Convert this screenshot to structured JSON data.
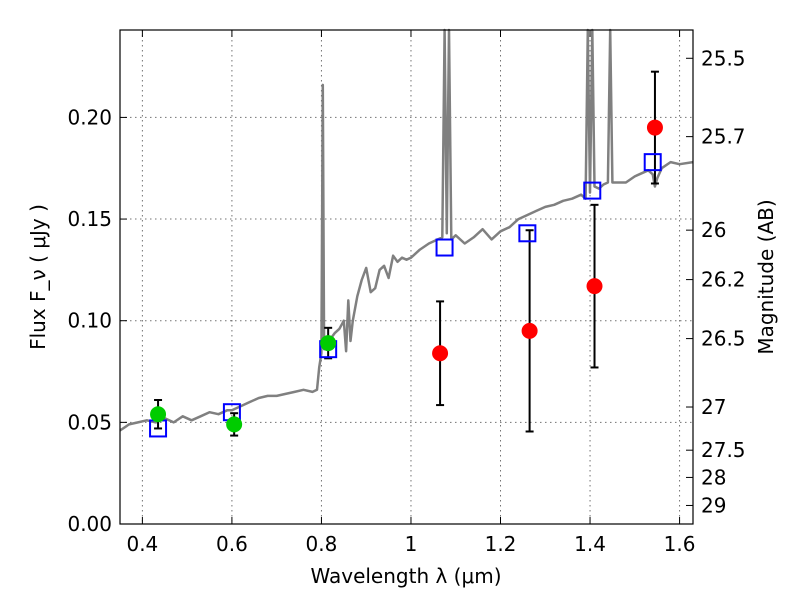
{
  "chart_data": {
    "type": "scatter",
    "xlabel": "Wavelength  λ (μm)",
    "ylabel_left": "Flux  F_ν ( μJy )",
    "ylabel_right": "Magnitude (AB)",
    "xlim": [
      0.35,
      1.63
    ],
    "ylim": [
      0.0,
      0.243
    ],
    "x_ticks": [
      0.4,
      0.6,
      0.8,
      1.0,
      1.2,
      1.4,
      1.6
    ],
    "x_tick_labels": [
      "0.4",
      "0.6",
      "0.8",
      "1",
      "1.2",
      "1.4",
      "1.6"
    ],
    "y_ticks": [
      0.0,
      0.05,
      0.1,
      0.15,
      0.2
    ],
    "y_tick_labels": [
      "0.00",
      "0.05",
      "0.10",
      "0.15",
      "0.20"
    ],
    "right_ticks": [
      {
        "label": "25.5",
        "mag": 25.5
      },
      {
        "label": "25.7",
        "mag": 25.7
      },
      {
        "label": "26",
        "mag": 26.0
      },
      {
        "label": "26.2",
        "mag": 26.2
      },
      {
        "label": "26.5",
        "mag": 26.5
      },
      {
        "label": "27",
        "mag": 27.0
      },
      {
        "label": "27.5",
        "mag": 27.5
      },
      {
        "label": "28",
        "mag": 28.0
      },
      {
        "label": "29",
        "mag": 29.0
      }
    ],
    "grid": true,
    "model_spectrum": {
      "color": "#808080",
      "x": [
        0.35,
        0.37,
        0.39,
        0.41,
        0.43,
        0.45,
        0.47,
        0.49,
        0.51,
        0.53,
        0.55,
        0.57,
        0.59,
        0.6,
        0.62,
        0.64,
        0.66,
        0.68,
        0.7,
        0.72,
        0.74,
        0.76,
        0.78,
        0.79,
        0.795,
        0.8,
        0.803,
        0.806,
        0.81,
        0.82,
        0.83,
        0.84,
        0.85,
        0.855,
        0.86,
        0.865,
        0.87,
        0.88,
        0.89,
        0.9,
        0.91,
        0.92,
        0.93,
        0.94,
        0.95,
        0.96,
        0.97,
        0.98,
        0.99,
        1.0,
        1.02,
        1.04,
        1.06,
        1.07,
        1.075,
        1.08,
        1.085,
        1.09,
        1.1,
        1.12,
        1.14,
        1.16,
        1.18,
        1.2,
        1.22,
        1.24,
        1.26,
        1.28,
        1.3,
        1.32,
        1.34,
        1.36,
        1.38,
        1.39,
        1.395,
        1.4,
        1.405,
        1.41,
        1.42,
        1.43,
        1.44,
        1.445,
        1.45,
        1.46,
        1.48,
        1.5,
        1.52,
        1.53,
        1.54,
        1.545,
        1.55,
        1.56,
        1.58,
        1.6,
        1.63
      ],
      "y": [
        0.046,
        0.049,
        0.05,
        0.051,
        0.05,
        0.052,
        0.05,
        0.053,
        0.051,
        0.053,
        0.055,
        0.054,
        0.056,
        0.056,
        0.058,
        0.06,
        0.062,
        0.063,
        0.063,
        0.064,
        0.065,
        0.066,
        0.065,
        0.066,
        0.077,
        0.084,
        0.216,
        0.086,
        0.09,
        0.091,
        0.094,
        0.096,
        0.1,
        0.085,
        0.11,
        0.09,
        0.1,
        0.112,
        0.12,
        0.126,
        0.114,
        0.116,
        0.125,
        0.127,
        0.121,
        0.132,
        0.129,
        0.131,
        0.13,
        0.131,
        0.135,
        0.138,
        0.14,
        0.141,
        0.25,
        0.143,
        0.25,
        0.14,
        0.142,
        0.138,
        0.141,
        0.145,
        0.14,
        0.144,
        0.146,
        0.15,
        0.152,
        0.154,
        0.156,
        0.157,
        0.159,
        0.16,
        0.162,
        0.16,
        0.25,
        0.163,
        0.25,
        0.166,
        0.165,
        0.167,
        0.168,
        0.25,
        0.168,
        0.168,
        0.168,
        0.171,
        0.173,
        0.174,
        0.172,
        0.166,
        0.17,
        0.175,
        0.178,
        0.177,
        0.178
      ]
    },
    "series": [
      {
        "marker": "square-open",
        "color": "#0000ff",
        "points": [
          {
            "x": 0.435,
            "y": 0.047
          },
          {
            "x": 0.6,
            "y": 0.055
          },
          {
            "x": 0.815,
            "y": 0.086
          },
          {
            "x": 1.075,
            "y": 0.136
          },
          {
            "x": 1.26,
            "y": 0.143
          },
          {
            "x": 1.405,
            "y": 0.164
          },
          {
            "x": 1.54,
            "y": 0.178
          }
        ]
      },
      {
        "marker": "circle",
        "color": "#00cc00",
        "points": [
          {
            "x": 0.435,
            "y": 0.054,
            "err": 0.007
          },
          {
            "x": 0.605,
            "y": 0.049,
            "err": 0.0055
          },
          {
            "x": 0.815,
            "y": 0.089,
            "err": 0.0075
          }
        ]
      },
      {
        "marker": "circle",
        "color": "#ff0000",
        "points": [
          {
            "x": 1.065,
            "y": 0.084,
            "err": 0.0255
          },
          {
            "x": 1.265,
            "y": 0.095,
            "err": 0.0495
          },
          {
            "x": 1.41,
            "y": 0.117,
            "err": 0.04
          },
          {
            "x": 1.545,
            "y": 0.195,
            "err": 0.0275
          }
        ]
      }
    ]
  }
}
